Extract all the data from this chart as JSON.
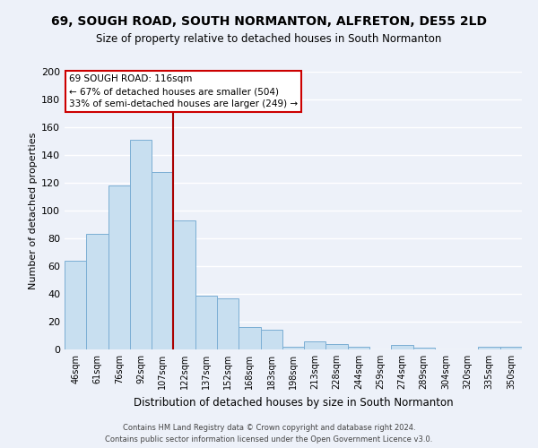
{
  "title1": "69, SOUGH ROAD, SOUTH NORMANTON, ALFRETON, DE55 2LD",
  "title2": "Size of property relative to detached houses in South Normanton",
  "xlabel": "Distribution of detached houses by size in South Normanton",
  "ylabel": "Number of detached properties",
  "bar_labels": [
    "46sqm",
    "61sqm",
    "76sqm",
    "92sqm",
    "107sqm",
    "122sqm",
    "137sqm",
    "152sqm",
    "168sqm",
    "183sqm",
    "198sqm",
    "213sqm",
    "228sqm",
    "244sqm",
    "259sqm",
    "274sqm",
    "289sqm",
    "304sqm",
    "320sqm",
    "335sqm",
    "350sqm"
  ],
  "bar_heights": [
    64,
    83,
    118,
    151,
    128,
    93,
    39,
    37,
    16,
    14,
    2,
    6,
    4,
    2,
    0,
    3,
    1,
    0,
    0,
    2,
    2
  ],
  "bar_color": "#c8dff0",
  "bar_edge_color": "#7baed4",
  "vline_color": "#aa0000",
  "annotation_title": "69 SOUGH ROAD: 116sqm",
  "annotation_line1": "← 67% of detached houses are smaller (504)",
  "annotation_line2": "33% of semi-detached houses are larger (249) →",
  "ylim": [
    0,
    200
  ],
  "yticks": [
    0,
    20,
    40,
    60,
    80,
    100,
    120,
    140,
    160,
    180,
    200
  ],
  "footer1": "Contains HM Land Registry data © Crown copyright and database right 2024.",
  "footer2": "Contains public sector information licensed under the Open Government Licence v3.0.",
  "bg_color": "#edf1f9",
  "grid_color": "#ffffff"
}
